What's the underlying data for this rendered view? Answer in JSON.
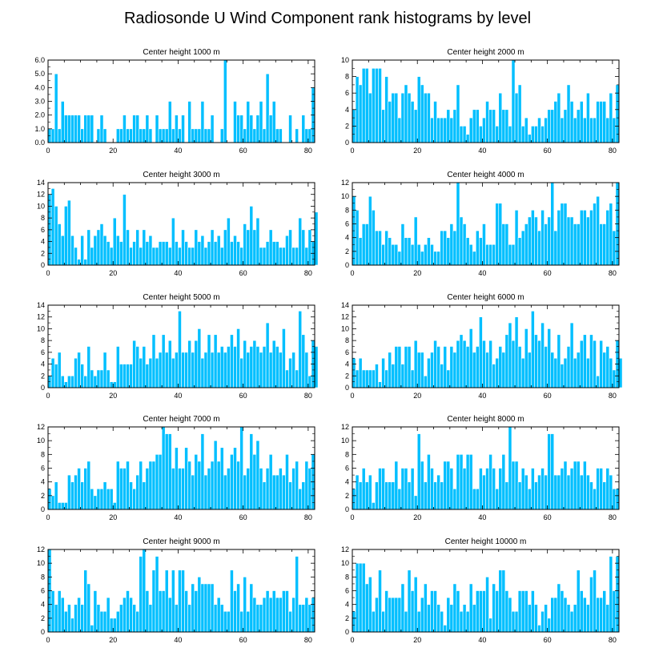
{
  "chart_data": {
    "type": "bar",
    "title": "Radiosonde U Wind Component rank histograms by level",
    "panels": [
      {
        "title": "Center height 1000 m",
        "xlim": [
          0,
          82
        ],
        "ylim": [
          0,
          6
        ],
        "xticks": [
          0,
          20,
          40,
          60,
          80
        ],
        "yticks": [
          "0.0",
          "1.0",
          "2.0",
          "3.0",
          "4.0",
          "5.0",
          "6.0"
        ],
        "values": [
          1,
          1,
          5,
          1,
          3,
          2,
          2,
          2,
          2,
          2,
          1,
          2,
          2,
          2,
          0,
          1,
          2,
          1,
          0,
          0,
          0,
          1,
          1,
          2,
          1,
          1,
          2,
          2,
          1,
          1,
          2,
          1,
          0,
          2,
          1,
          1,
          1,
          3,
          1,
          2,
          1,
          2,
          0,
          3,
          1,
          1,
          1,
          3,
          1,
          1,
          2,
          0,
          0,
          1,
          6,
          0,
          0,
          3,
          2,
          2,
          1,
          3,
          2,
          1,
          2,
          3,
          1,
          5,
          2,
          3,
          1,
          1,
          0,
          0,
          2,
          0,
          1,
          0,
          2,
          1,
          1,
          4
        ]
      },
      {
        "title": "Center height 2000 m",
        "xlim": [
          0,
          82
        ],
        "ylim": [
          0,
          10
        ],
        "xticks": [
          0,
          20,
          40,
          60,
          80
        ],
        "yticks": [
          "0",
          "2",
          "4",
          "6",
          "8",
          "10"
        ],
        "values": [
          4,
          8,
          7,
          9,
          9,
          6,
          9,
          9,
          9,
          4,
          8,
          5,
          6,
          6,
          3,
          6,
          7,
          6,
          5,
          4,
          8,
          7,
          6,
          6,
          3,
          5,
          3,
          3,
          3,
          4,
          3,
          4,
          7,
          2,
          2,
          1,
          3,
          4,
          4,
          2,
          3,
          5,
          4,
          4,
          2,
          6,
          4,
          4,
          2,
          10,
          6,
          7,
          2,
          3,
          1,
          2,
          2,
          3,
          2,
          3,
          4,
          4,
          5,
          6,
          3,
          4,
          7,
          5,
          3,
          4,
          5,
          3,
          6,
          3,
          3,
          5,
          5,
          5,
          3,
          6,
          3,
          7
        ]
      },
      {
        "title": "Center height 3000 m",
        "xlim": [
          0,
          82
        ],
        "ylim": [
          0,
          14
        ],
        "xticks": [
          0,
          20,
          40,
          60,
          80
        ],
        "yticks": [
          "0",
          "2",
          "4",
          "6",
          "8",
          "10",
          "12",
          "14"
        ],
        "values": [
          12,
          13,
          10,
          7,
          5,
          10,
          11,
          5,
          3,
          1,
          5,
          1,
          6,
          3,
          5,
          6,
          7,
          5,
          4,
          3,
          8,
          5,
          4,
          12,
          6,
          3,
          4,
          6,
          3,
          6,
          4,
          5,
          3,
          3,
          4,
          4,
          4,
          3,
          8,
          4,
          3,
          6,
          4,
          3,
          3,
          6,
          4,
          5,
          3,
          4,
          6,
          4,
          5,
          3,
          6,
          8,
          4,
          5,
          4,
          3,
          7,
          6,
          10,
          6,
          8,
          3,
          3,
          4,
          6,
          4,
          4,
          3,
          3,
          5,
          6,
          3,
          3,
          8,
          6,
          3,
          6,
          4,
          9
        ]
      },
      {
        "title": "Center height 4000 m",
        "xlim": [
          0,
          82
        ],
        "ylim": [
          0,
          12
        ],
        "xticks": [
          0,
          20,
          40,
          60,
          80
        ],
        "yticks": [
          "0",
          "2",
          "4",
          "6",
          "8",
          "10",
          "12"
        ],
        "values": [
          10,
          8,
          4,
          6,
          6,
          10,
          8,
          5,
          5,
          3,
          5,
          4,
          3,
          3,
          2,
          6,
          4,
          4,
          3,
          7,
          3,
          2,
          3,
          4,
          3,
          2,
          2,
          5,
          5,
          4,
          6,
          5,
          12,
          7,
          6,
          4,
          3,
          2,
          5,
          4,
          6,
          3,
          3,
          3,
          9,
          9,
          6,
          6,
          3,
          3,
          8,
          4,
          5,
          6,
          7,
          8,
          7,
          5,
          8,
          6,
          7,
          12,
          5,
          8,
          9,
          9,
          7,
          7,
          6,
          6,
          8,
          8,
          7,
          8,
          9,
          10,
          6,
          6,
          8,
          9,
          5,
          12
        ]
      },
      {
        "title": "Center height 5000 m",
        "xlim": [
          0,
          82
        ],
        "ylim": [
          0,
          14
        ],
        "xticks": [
          0,
          20,
          40,
          60,
          80
        ],
        "yticks": [
          "0",
          "2",
          "4",
          "6",
          "8",
          "10",
          "12",
          "14"
        ],
        "values": [
          2,
          5,
          4,
          6,
          2,
          1,
          2,
          2,
          5,
          6,
          4,
          2,
          7,
          3,
          2,
          3,
          3,
          6,
          3,
          1,
          1,
          7,
          4,
          4,
          4,
          4,
          8,
          7,
          5,
          7,
          4,
          5,
          9,
          5,
          6,
          9,
          6,
          8,
          5,
          6,
          13,
          6,
          6,
          8,
          6,
          8,
          10,
          5,
          6,
          9,
          6,
          9,
          6,
          7,
          6,
          7,
          9,
          7,
          10,
          5,
          8,
          6,
          7,
          8,
          7,
          6,
          7,
          11,
          6,
          8,
          7,
          6,
          10,
          3,
          5,
          6,
          3,
          13,
          9,
          6,
          2,
          8,
          7
        ]
      },
      {
        "title": "Center height 6000 m",
        "xlim": [
          0,
          82
        ],
        "ylim": [
          0,
          14
        ],
        "xticks": [
          0,
          20,
          40,
          60,
          80
        ],
        "yticks": [
          "0",
          "2",
          "4",
          "6",
          "8",
          "10",
          "12",
          "14"
        ],
        "values": [
          5,
          3,
          5,
          3,
          3,
          3,
          3,
          4,
          1,
          5,
          3,
          6,
          4,
          7,
          7,
          4,
          7,
          7,
          3,
          8,
          6,
          6,
          2,
          5,
          6,
          8,
          7,
          4,
          7,
          3,
          7,
          6,
          8,
          9,
          8,
          7,
          10,
          6,
          7,
          12,
          8,
          6,
          8,
          4,
          5,
          7,
          6,
          9,
          11,
          8,
          12,
          7,
          5,
          10,
          6,
          13,
          9,
          8,
          11,
          7,
          10,
          6,
          5,
          9,
          4,
          5,
          7,
          11,
          5,
          6,
          8,
          9,
          5,
          9,
          8,
          2,
          8,
          6,
          7,
          5,
          3,
          8,
          5
        ]
      },
      {
        "title": "Center height 7000 m",
        "xlim": [
          0,
          82
        ],
        "ylim": [
          0,
          12
        ],
        "xticks": [
          0,
          20,
          40,
          60,
          80
        ],
        "yticks": [
          "0",
          "2",
          "4",
          "6",
          "8",
          "10",
          "12"
        ],
        "values": [
          3,
          2,
          4,
          1,
          1,
          1,
          5,
          4,
          5,
          6,
          4,
          6,
          7,
          3,
          2,
          3,
          3,
          4,
          3,
          3,
          1,
          7,
          6,
          6,
          7,
          4,
          3,
          5,
          7,
          4,
          6,
          7,
          7,
          8,
          8,
          12,
          11,
          11,
          6,
          9,
          6,
          6,
          9,
          7,
          5,
          8,
          7,
          11,
          5,
          6,
          7,
          10,
          7,
          9,
          5,
          6,
          8,
          9,
          7,
          12,
          5,
          6,
          11,
          8,
          10,
          6,
          4,
          6,
          8,
          5,
          5,
          6,
          5,
          8,
          4,
          6,
          7,
          3,
          4,
          7,
          6,
          8
        ]
      },
      {
        "title": "Center height 8000 m",
        "xlim": [
          0,
          82
        ],
        "ylim": [
          0,
          12
        ],
        "xticks": [
          0,
          20,
          40,
          60,
          80
        ],
        "yticks": [
          "0",
          "2",
          "4",
          "6",
          "8",
          "10",
          "12"
        ],
        "values": [
          3,
          5,
          4,
          6,
          4,
          5,
          1,
          4,
          6,
          6,
          4,
          4,
          4,
          7,
          3,
          6,
          6,
          4,
          6,
          2,
          11,
          7,
          4,
          8,
          6,
          4,
          5,
          4,
          7,
          7,
          6,
          3,
          8,
          8,
          6,
          8,
          8,
          3,
          3,
          6,
          5,
          6,
          8,
          6,
          3,
          6,
          8,
          4,
          12,
          7,
          7,
          4,
          6,
          5,
          3,
          6,
          4,
          5,
          6,
          5,
          11,
          11,
          5,
          5,
          6,
          7,
          5,
          6,
          7,
          7,
          5,
          7,
          5,
          4,
          3,
          6,
          6,
          4,
          6,
          5,
          3,
          3
        ]
      },
      {
        "title": "Center height 9000 m",
        "xlim": [
          0,
          82
        ],
        "ylim": [
          0,
          12
        ],
        "xticks": [
          0,
          20,
          40,
          60,
          80
        ],
        "yticks": [
          "0",
          "2",
          "4",
          "6",
          "8",
          "10",
          "12"
        ],
        "values": [
          12,
          6,
          4,
          6,
          5,
          3,
          4,
          2,
          4,
          5,
          4,
          9,
          7,
          1,
          6,
          4,
          3,
          3,
          5,
          2,
          2,
          3,
          4,
          5,
          6,
          5,
          4,
          3,
          11,
          12,
          6,
          4,
          9,
          11,
          6,
          6,
          9,
          5,
          9,
          4,
          9,
          9,
          6,
          4,
          7,
          6,
          8,
          7,
          7,
          7,
          7,
          4,
          5,
          4,
          3,
          3,
          9,
          6,
          7,
          3,
          8,
          3,
          7,
          5,
          4,
          4,
          5,
          6,
          5,
          6,
          5,
          5,
          6,
          6,
          3,
          5,
          11,
          4,
          4,
          5,
          4,
          5
        ]
      },
      {
        "title": "Center height 10000 m",
        "xlim": [
          0,
          82
        ],
        "ylim": [
          0,
          12
        ],
        "xticks": [
          0,
          20,
          40,
          60,
          80
        ],
        "yticks": [
          "0",
          "2",
          "4",
          "6",
          "8",
          "10",
          "12"
        ],
        "values": [
          3,
          10,
          10,
          10,
          7,
          8,
          3,
          5,
          9,
          3,
          6,
          5,
          5,
          5,
          5,
          7,
          3,
          9,
          6,
          8,
          3,
          5,
          7,
          4,
          6,
          6,
          4,
          3,
          1,
          5,
          4,
          7,
          6,
          3,
          4,
          3,
          7,
          4,
          6,
          6,
          6,
          8,
          2,
          7,
          6,
          9,
          9,
          6,
          5,
          3,
          3,
          6,
          6,
          6,
          4,
          6,
          4,
          1,
          3,
          4,
          2,
          5,
          5,
          7,
          6,
          5,
          4,
          3,
          4,
          9,
          6,
          5,
          4,
          8,
          9,
          5,
          5,
          6,
          4,
          11,
          6,
          11
        ]
      }
    ]
  }
}
